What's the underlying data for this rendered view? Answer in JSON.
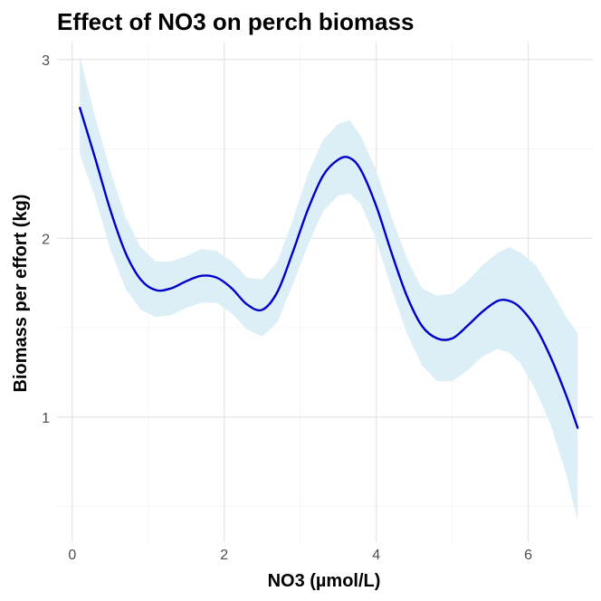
{
  "chart_data": {
    "type": "line",
    "title": "Effect of NO3 on perch biomass",
    "xlabel": "NO3 (µmol/L)",
    "ylabel": "Biomass per effort (kg)",
    "xlim": [
      -0.2,
      6.85
    ],
    "ylim": [
      0.3,
      3.1
    ],
    "x_ticks": [
      0,
      2,
      4,
      6
    ],
    "y_ticks": [
      1,
      2,
      3
    ],
    "x_tick_labels": [
      "0",
      "2",
      "4",
      "6"
    ],
    "y_tick_labels": [
      "1",
      "2",
      "3"
    ],
    "grid": true,
    "line_color": "#0000CD",
    "ribbon_color": "#DCEEF6",
    "series": [
      {
        "x": [
          0.1,
          0.3,
          0.5,
          0.7,
          0.9,
          1.1,
          1.3,
          1.5,
          1.7,
          1.9,
          2.1,
          2.3,
          2.5,
          2.7,
          2.9,
          3.1,
          3.3,
          3.5,
          3.65,
          3.8,
          4.0,
          4.2,
          4.4,
          4.6,
          4.8,
          5.0,
          5.2,
          5.4,
          5.6,
          5.75,
          5.9,
          6.1,
          6.3,
          6.5,
          6.65
        ],
        "y": [
          2.73,
          2.45,
          2.16,
          1.92,
          1.77,
          1.71,
          1.72,
          1.76,
          1.79,
          1.78,
          1.72,
          1.63,
          1.6,
          1.7,
          1.92,
          2.16,
          2.35,
          2.44,
          2.45,
          2.38,
          2.18,
          1.92,
          1.68,
          1.51,
          1.44,
          1.44,
          1.51,
          1.59,
          1.65,
          1.65,
          1.61,
          1.5,
          1.33,
          1.12,
          0.94
        ],
        "lower": [
          2.47,
          2.23,
          1.94,
          1.72,
          1.6,
          1.56,
          1.57,
          1.61,
          1.64,
          1.64,
          1.58,
          1.49,
          1.45,
          1.53,
          1.74,
          1.96,
          2.15,
          2.24,
          2.25,
          2.19,
          1.99,
          1.72,
          1.47,
          1.29,
          1.2,
          1.2,
          1.26,
          1.34,
          1.38,
          1.36,
          1.3,
          1.15,
          0.95,
          0.68,
          0.42
        ],
        "upper": [
          3.02,
          2.68,
          2.38,
          2.12,
          1.95,
          1.87,
          1.87,
          1.9,
          1.94,
          1.93,
          1.87,
          1.78,
          1.77,
          1.87,
          2.1,
          2.36,
          2.55,
          2.64,
          2.66,
          2.57,
          2.38,
          2.12,
          1.89,
          1.72,
          1.68,
          1.69,
          1.76,
          1.85,
          1.92,
          1.95,
          1.92,
          1.85,
          1.71,
          1.56,
          1.47
        ]
      }
    ]
  }
}
